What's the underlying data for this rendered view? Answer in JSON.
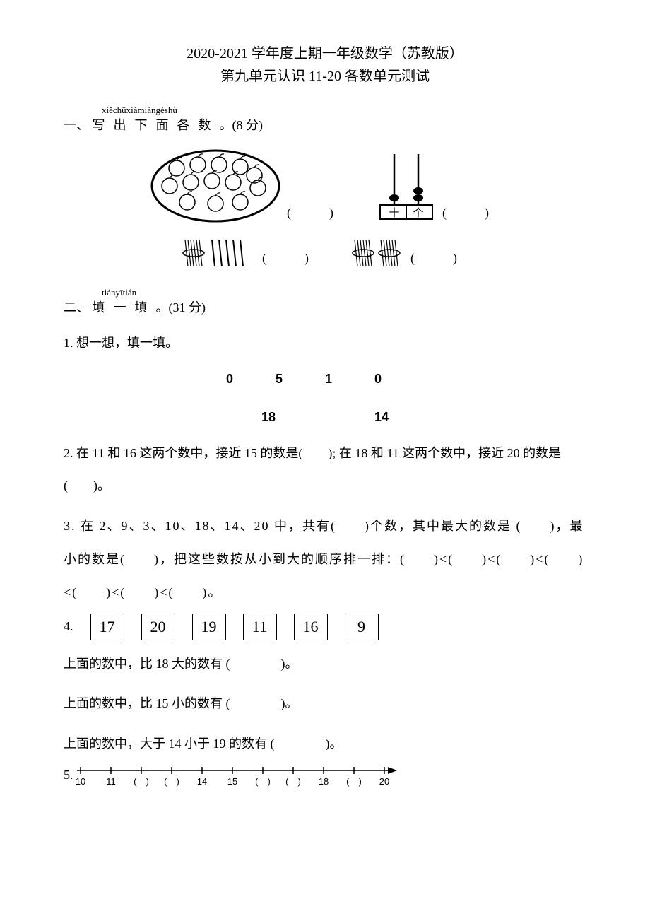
{
  "title": {
    "line1": "2020-2021 学年度上期一年级数学（苏教版）",
    "line2": "第九单元认识   11-20 各数单元测试"
  },
  "section1": {
    "num": "一、",
    "pinyin": "xiěchūxiàmiàngèshù",
    "text": "写出下面各数",
    "points": "。(8 分)",
    "items": {
      "apples_count": 13,
      "abacus_tens": 1,
      "abacus_ones": 2,
      "abacus_tens_label": "十",
      "abacus_ones_label": "个",
      "sticks1_bundle": 1,
      "sticks1_loose": 5,
      "sticks2_bundle": 2,
      "sticks2_loose": 0
    }
  },
  "section2": {
    "num": "二、",
    "pinyin": "tiányītián",
    "text": "填一填",
    "points": "。(31 分)",
    "q1": {
      "label": "1. 想一想，填一填。",
      "row1": [
        "0",
        "5",
        "10"
      ],
      "row2": [
        "18",
        "14"
      ]
    },
    "q2": "2. 在 11 和 16 这两个数中，接近 15 的数是(　　); 在 18 和 11 这两个数中，接近 20 的数是(　　)。",
    "q3": "3. 在 2、9、3、10、18、14、20 中，共有(　　)个数，其中最大的数是 (　　)，最小的数是(　　)，把这些数按从小到大的顺序排一排：(　　)<(　　)<(　　)<(　　)<(　　)<(　　)<(　　)。",
    "q4": {
      "label": "4.",
      "boxes": [
        "17",
        "20",
        "19",
        "11",
        "16",
        "9"
      ],
      "line1": "上面的数中，比 18 大的数有 (　　　　)。",
      "line2": "上面的数中，比 15 小的数有 (　　　　)。",
      "line3": "上面的数中，大于 14 小于 19 的数有 (　　　　)。"
    },
    "q5": {
      "label": "5.",
      "ticks": [
        "10",
        "11",
        "(　)",
        "(　)",
        "14",
        "15",
        "(　)",
        "(　)",
        "18",
        "(　)",
        "20"
      ]
    }
  },
  "colors": {
    "ink": "#000000",
    "bg": "#ffffff"
  }
}
